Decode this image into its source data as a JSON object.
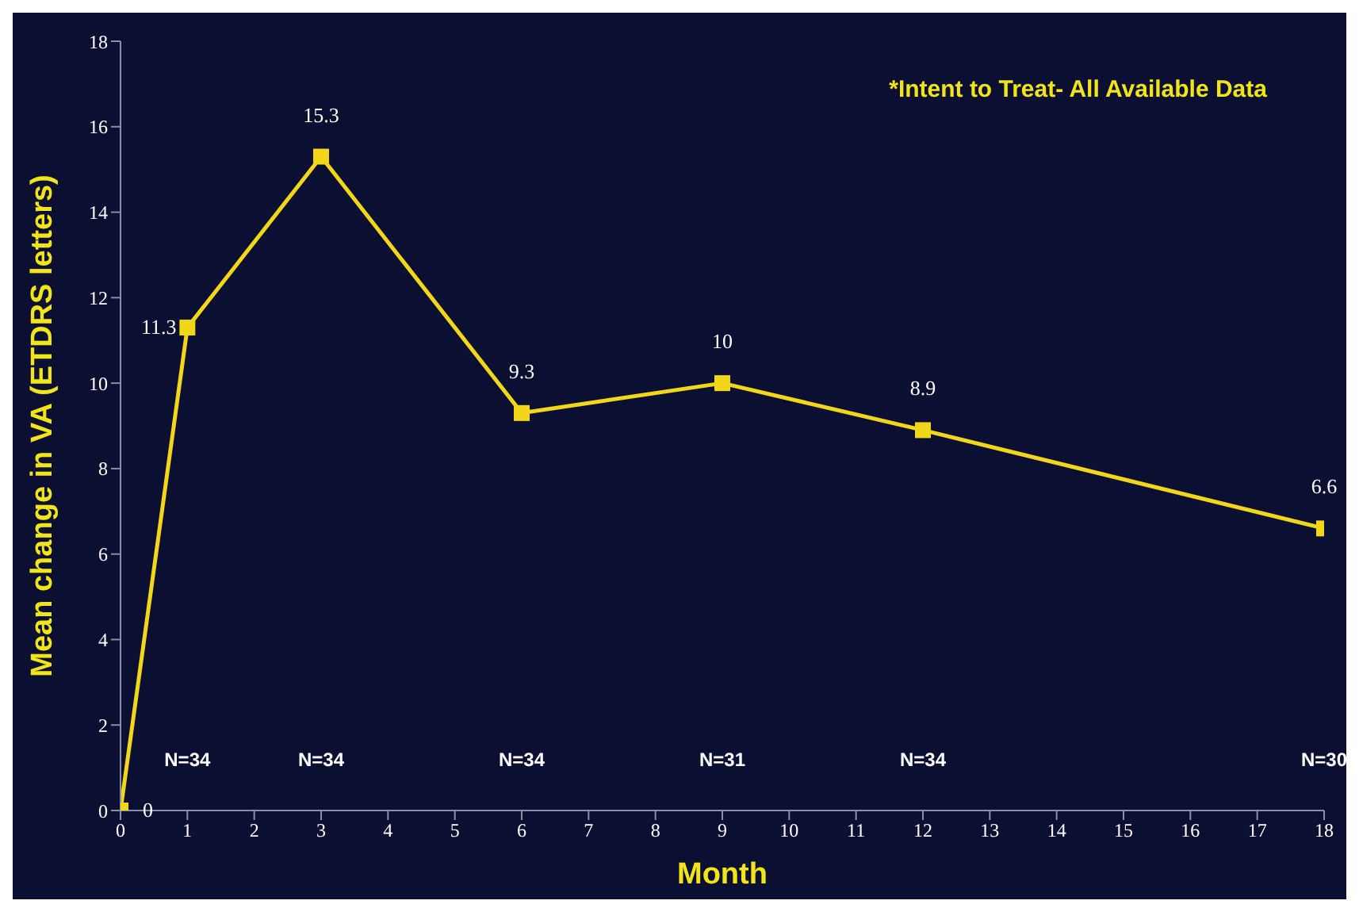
{
  "chart_data": {
    "type": "line",
    "xlabel": "Month",
    "ylabel": "Mean change in VA (ETDRS letters)",
    "x": [
      0,
      1,
      3,
      6,
      9,
      12,
      18
    ],
    "series": [
      {
        "color": "#f2d61a",
        "values": [
          0,
          11.3,
          15.3,
          9.3,
          10,
          8.9,
          6.6
        ]
      }
    ],
    "xlim": [
      0,
      18
    ],
    "xticks": [
      0,
      1,
      2,
      3,
      4,
      5,
      6,
      7,
      8,
      9,
      10,
      11,
      12,
      13,
      14,
      15,
      16,
      17,
      18
    ],
    "ylim": [
      0,
      18
    ],
    "yticks": [
      0,
      2,
      4,
      6,
      8,
      10,
      12,
      14,
      16,
      18
    ],
    "marker": "square",
    "data_labels": true,
    "annotations": [
      "*Intent to Treat- All Available Data",
      "N=34",
      "N=34",
      "N=34",
      "N=31",
      "N=34",
      "N=30"
    ]
  }
}
